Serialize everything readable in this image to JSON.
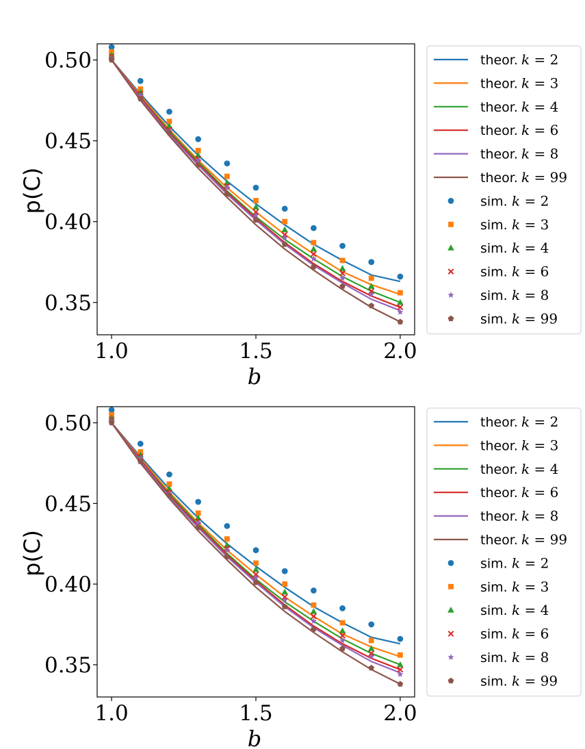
{
  "chart_data": [
    {
      "type": "line",
      "title": "",
      "xlabel": "b",
      "ylabel": "p(C)",
      "xlim": [
        0.95,
        2.05
      ],
      "ylim": [
        0.33,
        0.51
      ],
      "xticks": [
        "1.0",
        "1.5",
        "2.0"
      ],
      "xtick_values": [
        1.0,
        1.5,
        2.0
      ],
      "yticks": [
        "0.35",
        "0.40",
        "0.45",
        "0.50"
      ],
      "ytick_values": [
        0.35,
        0.4,
        0.45,
        0.5
      ],
      "x": [
        1.0,
        1.1,
        1.2,
        1.3,
        1.4,
        1.5,
        1.6,
        1.7,
        1.8,
        1.9,
        2.0
      ],
      "legend_position": "outside-right",
      "series": [
        {
          "name": "theor. k = 2",
          "prefix": "theor.",
          "k": "2",
          "kind": "line",
          "color": "#1f77b4",
          "values": [
            0.5,
            0.479,
            0.459,
            0.441,
            0.425,
            0.411,
            0.398,
            0.386,
            0.376,
            0.367,
            0.363
          ]
        },
        {
          "name": "theor. k = 3",
          "prefix": "theor.",
          "k": "3",
          "kind": "line",
          "color": "#ff7f0e",
          "values": [
            0.5,
            0.478,
            0.457,
            0.438,
            0.421,
            0.406,
            0.392,
            0.38,
            0.369,
            0.361,
            0.355
          ]
        },
        {
          "name": "theor. k = 4",
          "prefix": "theor.",
          "k": "4",
          "kind": "line",
          "color": "#2ca02c",
          "values": [
            0.5,
            0.477,
            0.456,
            0.437,
            0.419,
            0.403,
            0.389,
            0.377,
            0.366,
            0.357,
            0.35
          ]
        },
        {
          "name": "theor. k = 6",
          "prefix": "theor.",
          "k": "6",
          "kind": "line",
          "color": "#d62728",
          "values": [
            0.5,
            0.477,
            0.455,
            0.436,
            0.418,
            0.402,
            0.387,
            0.374,
            0.363,
            0.354,
            0.347
          ]
        },
        {
          "name": "theor. k = 8",
          "prefix": "theor.",
          "k": "8",
          "kind": "line",
          "color": "#9467bd",
          "values": [
            0.5,
            0.476,
            0.454,
            0.435,
            0.417,
            0.401,
            0.386,
            0.373,
            0.362,
            0.352,
            0.345
          ]
        },
        {
          "name": "theor. k = 99",
          "prefix": "theor.",
          "k": "99",
          "kind": "line",
          "color": "#8c564b",
          "values": [
            0.5,
            0.475,
            0.453,
            0.433,
            0.415,
            0.398,
            0.383,
            0.37,
            0.358,
            0.347,
            0.338
          ]
        },
        {
          "name": "sim. k = 2",
          "prefix": "sim.",
          "k": "2",
          "kind": "marker",
          "marker": "circle",
          "color": "#1f77b4",
          "values": [
            0.508,
            0.487,
            0.468,
            0.451,
            0.436,
            0.421,
            0.408,
            0.396,
            0.385,
            0.375,
            0.366
          ]
        },
        {
          "name": "sim. k = 3",
          "prefix": "sim.",
          "k": "3",
          "kind": "marker",
          "marker": "square",
          "color": "#ff7f0e",
          "values": [
            0.505,
            0.482,
            0.462,
            0.444,
            0.428,
            0.413,
            0.4,
            0.387,
            0.376,
            0.365,
            0.356
          ]
        },
        {
          "name": "sim. k = 4",
          "prefix": "sim.",
          "k": "4",
          "kind": "marker",
          "marker": "triangle",
          "color": "#2ca02c",
          "values": [
            0.503,
            0.48,
            0.459,
            0.441,
            0.424,
            0.409,
            0.395,
            0.383,
            0.371,
            0.36,
            0.35
          ]
        },
        {
          "name": "sim. k = 6",
          "prefix": "sim.",
          "k": "6",
          "kind": "marker",
          "marker": "x",
          "color": "#d62728",
          "values": [
            0.502,
            0.479,
            0.457,
            0.439,
            0.422,
            0.406,
            0.392,
            0.38,
            0.368,
            0.357,
            0.347
          ]
        },
        {
          "name": "sim. k = 8",
          "prefix": "sim.",
          "k": "8",
          "kind": "marker",
          "marker": "star",
          "color": "#9467bd",
          "values": [
            0.501,
            0.478,
            0.456,
            0.438,
            0.421,
            0.404,
            0.39,
            0.377,
            0.365,
            0.355,
            0.344
          ]
        },
        {
          "name": "sim. k = 99",
          "prefix": "sim.",
          "k": "99",
          "kind": "marker",
          "marker": "pentagon",
          "color": "#8c564b",
          "values": [
            0.5,
            0.476,
            0.455,
            0.435,
            0.417,
            0.401,
            0.386,
            0.372,
            0.36,
            0.348,
            0.338
          ]
        }
      ]
    },
    {
      "type": "line",
      "title": "",
      "xlabel": "b",
      "ylabel": "p(C)",
      "xlim": [
        0.95,
        2.05
      ],
      "ylim": [
        0.33,
        0.51
      ],
      "xticks": [
        "1.0",
        "1.5",
        "2.0"
      ],
      "xtick_values": [
        1.0,
        1.5,
        2.0
      ],
      "yticks": [
        "0.35",
        "0.40",
        "0.45",
        "0.50"
      ],
      "ytick_values": [
        0.35,
        0.4,
        0.45,
        0.5
      ],
      "x": [
        1.0,
        1.1,
        1.2,
        1.3,
        1.4,
        1.5,
        1.6,
        1.7,
        1.8,
        1.9,
        2.0
      ],
      "legend_position": "outside-right",
      "series": [
        {
          "name": "theor. k = 2",
          "prefix": "theor.",
          "k": "2",
          "kind": "line",
          "color": "#1f77b4",
          "values": [
            0.5,
            0.479,
            0.459,
            0.441,
            0.425,
            0.411,
            0.398,
            0.386,
            0.376,
            0.367,
            0.363
          ]
        },
        {
          "name": "theor. k = 3",
          "prefix": "theor.",
          "k": "3",
          "kind": "line",
          "color": "#ff7f0e",
          "values": [
            0.5,
            0.478,
            0.457,
            0.438,
            0.421,
            0.406,
            0.392,
            0.38,
            0.369,
            0.361,
            0.355
          ]
        },
        {
          "name": "theor. k = 4",
          "prefix": "theor.",
          "k": "4",
          "kind": "line",
          "color": "#2ca02c",
          "values": [
            0.5,
            0.477,
            0.456,
            0.437,
            0.419,
            0.403,
            0.389,
            0.377,
            0.366,
            0.357,
            0.35
          ]
        },
        {
          "name": "theor. k = 6",
          "prefix": "theor.",
          "k": "6",
          "kind": "line",
          "color": "#d62728",
          "values": [
            0.5,
            0.477,
            0.455,
            0.436,
            0.418,
            0.402,
            0.387,
            0.374,
            0.363,
            0.354,
            0.347
          ]
        },
        {
          "name": "theor. k = 8",
          "prefix": "theor.",
          "k": "8",
          "kind": "line",
          "color": "#9467bd",
          "values": [
            0.5,
            0.476,
            0.454,
            0.435,
            0.417,
            0.401,
            0.386,
            0.373,
            0.362,
            0.352,
            0.345
          ]
        },
        {
          "name": "theor. k = 99",
          "prefix": "theor.",
          "k": "99",
          "kind": "line",
          "color": "#8c564b",
          "values": [
            0.5,
            0.475,
            0.453,
            0.433,
            0.415,
            0.398,
            0.383,
            0.37,
            0.358,
            0.347,
            0.338
          ]
        },
        {
          "name": "sim. k = 2",
          "prefix": "sim.",
          "k": "2",
          "kind": "marker",
          "marker": "circle",
          "color": "#1f77b4",
          "values": [
            0.508,
            0.487,
            0.468,
            0.451,
            0.436,
            0.421,
            0.408,
            0.396,
            0.385,
            0.375,
            0.366
          ]
        },
        {
          "name": "sim. k = 3",
          "prefix": "sim.",
          "k": "3",
          "kind": "marker",
          "marker": "square",
          "color": "#ff7f0e",
          "values": [
            0.505,
            0.482,
            0.462,
            0.444,
            0.428,
            0.413,
            0.4,
            0.387,
            0.376,
            0.365,
            0.356
          ]
        },
        {
          "name": "sim. k = 4",
          "prefix": "sim.",
          "k": "4",
          "kind": "marker",
          "marker": "triangle",
          "color": "#2ca02c",
          "values": [
            0.503,
            0.48,
            0.459,
            0.441,
            0.424,
            0.409,
            0.395,
            0.383,
            0.371,
            0.36,
            0.35
          ]
        },
        {
          "name": "sim. k = 6",
          "prefix": "sim.",
          "k": "6",
          "kind": "marker",
          "marker": "x",
          "color": "#d62728",
          "values": [
            0.502,
            0.479,
            0.457,
            0.439,
            0.422,
            0.406,
            0.392,
            0.38,
            0.368,
            0.357,
            0.347
          ]
        },
        {
          "name": "sim. k = 8",
          "prefix": "sim.",
          "k": "8",
          "kind": "marker",
          "marker": "star",
          "color": "#9467bd",
          "values": [
            0.501,
            0.478,
            0.456,
            0.438,
            0.421,
            0.404,
            0.39,
            0.377,
            0.365,
            0.355,
            0.344
          ]
        },
        {
          "name": "sim. k = 99",
          "prefix": "sim.",
          "k": "99",
          "kind": "marker",
          "marker": "pentagon",
          "color": "#8c564b",
          "values": [
            0.5,
            0.476,
            0.455,
            0.435,
            0.417,
            0.401,
            0.386,
            0.372,
            0.36,
            0.348,
            0.338
          ]
        }
      ]
    }
  ]
}
